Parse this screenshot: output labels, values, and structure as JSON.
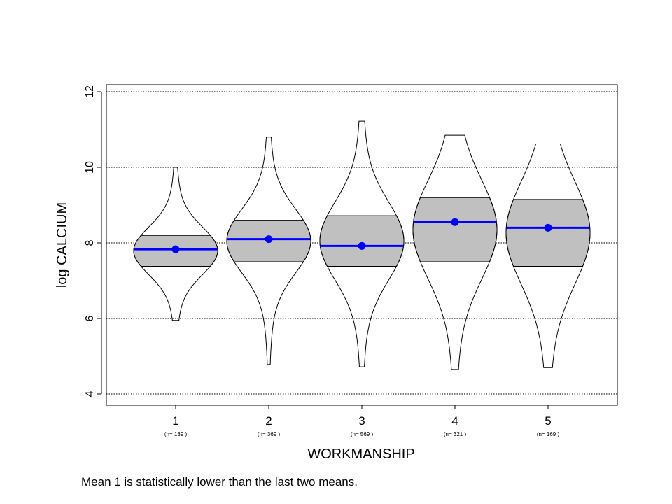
{
  "chart_data": {
    "type": "violin",
    "title": "",
    "xlabel": "WORKMANSHIP",
    "ylabel": "log CALCIUM",
    "ylim": [
      3.7,
      12.2
    ],
    "yticks": [
      4,
      6,
      8,
      10,
      12
    ],
    "grid": "horizontal-dotted",
    "categories": [
      "1",
      "2",
      "3",
      "4",
      "5"
    ],
    "counts": [
      "(n= 139 )",
      "(n= 369 )",
      "(n= 569 )",
      "(n= 321 )",
      "(n= 169 )"
    ],
    "groups": [
      {
        "label": "1",
        "min": 5.95,
        "max": 10.0,
        "q1": 7.38,
        "q3": 8.2,
        "mean": 7.83
      },
      {
        "label": "2",
        "min": 4.78,
        "max": 10.8,
        "q1": 7.5,
        "q3": 8.6,
        "mean": 8.1
      },
      {
        "label": "3",
        "min": 4.72,
        "max": 11.22,
        "q1": 7.38,
        "q3": 8.72,
        "mean": 7.92
      },
      {
        "label": "4",
        "min": 4.65,
        "max": 10.85,
        "q1": 7.5,
        "q3": 9.2,
        "mean": 8.55
      },
      {
        "label": "5",
        "min": 4.7,
        "max": 10.62,
        "q1": 7.38,
        "q3": 9.15,
        "mean": 8.4
      }
    ],
    "colors": {
      "box": "#c0c0c0",
      "mean": "#0000ff",
      "outline": "#000000"
    }
  },
  "caption": "Mean 1  is statistically lower than the last two means."
}
